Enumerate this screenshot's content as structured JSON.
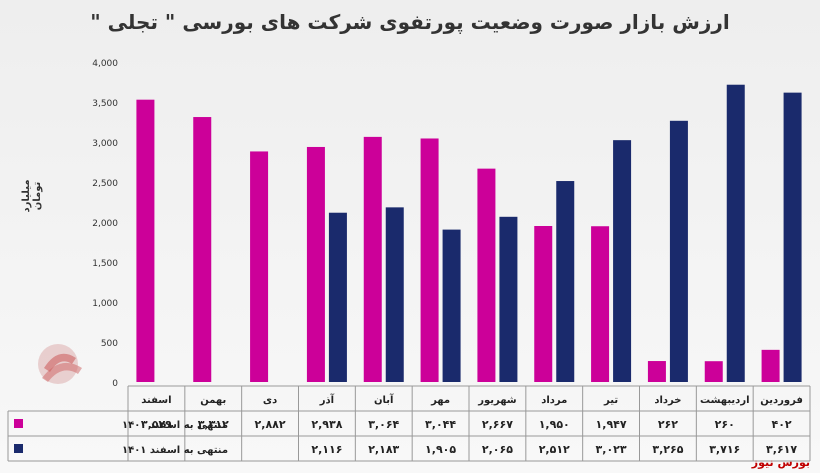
{
  "page": {
    "title": "ارزش بازار صورت وضعیت پورتفوی شرکت های بورسی \" تجلی \"",
    "brand": "بورس نیوز",
    "watermark_text": "بورس نیوز"
  },
  "chart_data": {
    "type": "bar",
    "title": "ارزش بازار صورت وضعیت پورتفوی شرکت های بورسی \" تجلی \"",
    "ylabel": "میلیارد تومان",
    "ylim": [
      0,
      4000
    ],
    "yticks": [
      0,
      500,
      1000,
      1500,
      2000,
      2500,
      3000,
      3500,
      4000
    ],
    "ytick_labels": [
      "0",
      "500",
      "1,000",
      "1,500",
      "2,000",
      "2,500",
      "3,000",
      "3,500",
      "4,000"
    ],
    "grid": false,
    "legend": "table-below-left",
    "categories": [
      "فروردین",
      "اردیبهشت",
      "خرداد",
      "تیر",
      "مرداد",
      "شهریور",
      "مهر",
      "آبان",
      "آذر",
      "دی",
      "بهمن",
      "اسفند"
    ],
    "series": [
      {
        "name": "منتهی به اسفند ۱۴۰۰",
        "color": "#cc0099",
        "values": [
          402,
          260,
          262,
          1947,
          1950,
          2667,
          3044,
          3064,
          2938,
          2882,
          3312,
          3529
        ],
        "labels": [
          "۴۰۲",
          "۲۶۰",
          "۲۶۲",
          "۱,۹۴۷",
          "۱,۹۵۰",
          "۲,۶۶۷",
          "۳,۰۴۴",
          "۳,۰۶۴",
          "۲,۹۳۸",
          "۲,۸۸۲",
          "۳,۳۱۲",
          "۳,۵۲۹"
        ]
      },
      {
        "name": "منتهی به اسفند ۱۴۰۱",
        "color": "#1a2a6c",
        "values": [
          3617,
          3716,
          3265,
          3023,
          2512,
          2065,
          1905,
          2183,
          2116,
          null,
          null,
          null
        ],
        "labels": [
          "۳,۶۱۷",
          "۳,۷۱۶",
          "۳,۲۶۵",
          "۳,۰۲۳",
          "۲,۵۱۲",
          "۲,۰۶۵",
          "۱,۹۰۵",
          "۲,۱۸۳",
          "۲,۱۱۶",
          "",
          "",
          ""
        ]
      }
    ]
  }
}
